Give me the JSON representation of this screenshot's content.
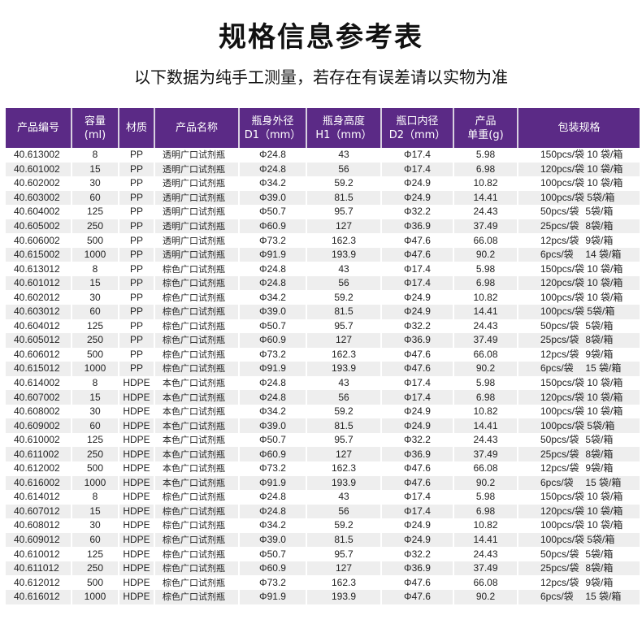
{
  "title": "规格信息参考表",
  "subtitle": "以下数据为纯手工测量，若存在有误差请以实物为准",
  "colors": {
    "header_bg": "#5b2a86",
    "header_text": "#ffffff",
    "stripe": "#eeeeee"
  },
  "table": {
    "headers": [
      {
        "line1": "产品编号",
        "line2": ""
      },
      {
        "line1": "容量",
        "line2": "(ml)"
      },
      {
        "line1": "材质",
        "line2": ""
      },
      {
        "line1": "产品名称",
        "line2": ""
      },
      {
        "line1": "瓶身外径",
        "line2": "D1（mm）"
      },
      {
        "line1": "瓶身高度",
        "line2": "H1（mm）"
      },
      {
        "line1": "瓶口内径",
        "line2": "D2（mm）"
      },
      {
        "line1": "产品",
        "line2": "单重(g)"
      },
      {
        "line1": "包装规格",
        "line2": ""
      }
    ],
    "rows": [
      [
        "40.613002",
        "8",
        "PP",
        "透明广口试剂瓶",
        "Φ24.8",
        "43",
        "Φ17.4",
        "5.98",
        "150pcs/袋",
        "10 袋/箱"
      ],
      [
        "40.601002",
        "15",
        "PP",
        "透明广口试剂瓶",
        "Φ24.8",
        "56",
        "Φ17.4",
        "6.98",
        "120pcs/袋",
        "10 袋/箱"
      ],
      [
        "40.602002",
        "30",
        "PP",
        "透明广口试剂瓶",
        "Φ34.2",
        "59.2",
        "Φ24.9",
        "10.82",
        "100pcs/袋",
        "10 袋/箱"
      ],
      [
        "40.603002",
        "60",
        "PP",
        "透明广口试剂瓶",
        "Φ39.0",
        "81.5",
        "Φ24.9",
        "14.41",
        "100pcs/袋",
        "5袋/箱"
      ],
      [
        "40.604002",
        "125",
        "PP",
        "透明广口试剂瓶",
        "Φ50.7",
        "95.7",
        "Φ32.2",
        "24.43",
        "50pcs/袋",
        "5袋/箱"
      ],
      [
        "40.605002",
        "250",
        "PP",
        "透明广口试剂瓶",
        "Φ60.9",
        "127",
        "Φ36.9",
        "37.49",
        "25pcs/袋",
        "8袋/箱"
      ],
      [
        "40.606002",
        "500",
        "PP",
        "透明广口试剂瓶",
        "Φ73.2",
        "162.3",
        "Φ47.6",
        "66.08",
        "12pcs/袋",
        "9袋/箱"
      ],
      [
        "40.615002",
        "1000",
        "PP",
        "透明广口试剂瓶",
        "Φ91.9",
        "193.9",
        "Φ47.6",
        "90.2",
        "6pcs/袋",
        "14 袋/箱"
      ],
      [
        "40.613012",
        "8",
        "PP",
        "棕色广口试剂瓶",
        "Φ24.8",
        "43",
        "Φ17.4",
        "5.98",
        "150pcs/袋",
        "10 袋/箱"
      ],
      [
        "40.601012",
        "15",
        "PP",
        "棕色广口试剂瓶",
        "Φ24.8",
        "56",
        "Φ17.4",
        "6.98",
        "120pcs/袋",
        "10 袋/箱"
      ],
      [
        "40.602012",
        "30",
        "PP",
        "棕色广口试剂瓶",
        "Φ34.2",
        "59.2",
        "Φ24.9",
        "10.82",
        "100pcs/袋",
        "10 袋/箱"
      ],
      [
        "40.603012",
        "60",
        "PP",
        "棕色广口试剂瓶",
        "Φ39.0",
        "81.5",
        "Φ24.9",
        "14.41",
        "100pcs/袋",
        "5袋/箱"
      ],
      [
        "40.604012",
        "125",
        "PP",
        "棕色广口试剂瓶",
        "Φ50.7",
        "95.7",
        "Φ32.2",
        "24.43",
        "50pcs/袋",
        "5袋/箱"
      ],
      [
        "40.605012",
        "250",
        "PP",
        "棕色广口试剂瓶",
        "Φ60.9",
        "127",
        "Φ36.9",
        "37.49",
        "25pcs/袋",
        "8袋/箱"
      ],
      [
        "40.606012",
        "500",
        "PP",
        "棕色广口试剂瓶",
        "Φ73.2",
        "162.3",
        "Φ47.6",
        "66.08",
        "12pcs/袋",
        "9袋/箱"
      ],
      [
        "40.615012",
        "1000",
        "PP",
        "棕色广口试剂瓶",
        "Φ91.9",
        "193.9",
        "Φ47.6",
        "90.2",
        "6pcs/袋",
        "15 袋/箱"
      ],
      [
        "40.614002",
        "8",
        "HDPE",
        "本色广口试剂瓶",
        "Φ24.8",
        "43",
        "Φ17.4",
        "5.98",
        "150pcs/袋",
        "10 袋/箱"
      ],
      [
        "40.607002",
        "15",
        "HDPE",
        "本色广口试剂瓶",
        "Φ24.8",
        "56",
        "Φ17.4",
        "6.98",
        "120pcs/袋",
        "10 袋/箱"
      ],
      [
        "40.608002",
        "30",
        "HDPE",
        "本色广口试剂瓶",
        "Φ34.2",
        "59.2",
        "Φ24.9",
        "10.82",
        "100pcs/袋",
        "10 袋/箱"
      ],
      [
        "40.609002",
        "60",
        "HDPE",
        "本色广口试剂瓶",
        "Φ39.0",
        "81.5",
        "Φ24.9",
        "14.41",
        "100pcs/袋",
        "5袋/箱"
      ],
      [
        "40.610002",
        "125",
        "HDPE",
        "本色广口试剂瓶",
        "Φ50.7",
        "95.7",
        "Φ32.2",
        "24.43",
        "50pcs/袋",
        "5袋/箱"
      ],
      [
        "40.611002",
        "250",
        "HDPE",
        "本色广口试剂瓶",
        "Φ60.9",
        "127",
        "Φ36.9",
        "37.49",
        "25pcs/袋",
        "8袋/箱"
      ],
      [
        "40.612002",
        "500",
        "HDPE",
        "本色广口试剂瓶",
        "Φ73.2",
        "162.3",
        "Φ47.6",
        "66.08",
        "12pcs/袋",
        "9袋/箱"
      ],
      [
        "40.616002",
        "1000",
        "HDPE",
        "本色广口试剂瓶",
        "Φ91.9",
        "193.9",
        "Φ47.6",
        "90.2",
        "6pcs/袋",
        "15 袋/箱"
      ],
      [
        "40.614012",
        "8",
        "HDPE",
        "棕色广口试剂瓶",
        "Φ24.8",
        "43",
        "Φ17.4",
        "5.98",
        "150pcs/袋",
        "10 袋/箱"
      ],
      [
        "40.607012",
        "15",
        "HDPE",
        "棕色广口试剂瓶",
        "Φ24.8",
        "56",
        "Φ17.4",
        "6.98",
        "120pcs/袋",
        "10 袋/箱"
      ],
      [
        "40.608012",
        "30",
        "HDPE",
        "棕色广口试剂瓶",
        "Φ34.2",
        "59.2",
        "Φ24.9",
        "10.82",
        "100pcs/袋",
        "10 袋/箱"
      ],
      [
        "40.609012",
        "60",
        "HDPE",
        "棕色广口试剂瓶",
        "Φ39.0",
        "81.5",
        "Φ24.9",
        "14.41",
        "100pcs/袋",
        "5袋/箱"
      ],
      [
        "40.610012",
        "125",
        "HDPE",
        "棕色广口试剂瓶",
        "Φ50.7",
        "95.7",
        "Φ32.2",
        "24.43",
        "50pcs/袋",
        "5袋/箱"
      ],
      [
        "40.611012",
        "250",
        "HDPE",
        "棕色广口试剂瓶",
        "Φ60.9",
        "127",
        "Φ36.9",
        "37.49",
        "25pcs/袋",
        "8袋/箱"
      ],
      [
        "40.612012",
        "500",
        "HDPE",
        "棕色广口试剂瓶",
        "Φ73.2",
        "162.3",
        "Φ47.6",
        "66.08",
        "12pcs/袋",
        "9袋/箱"
      ],
      [
        "40.616012",
        "1000",
        "HDPE",
        "棕色广口试剂瓶",
        "Φ91.9",
        "193.9",
        "Φ47.6",
        "90.2",
        "6pcs/袋",
        "15 袋/箱"
      ]
    ]
  }
}
